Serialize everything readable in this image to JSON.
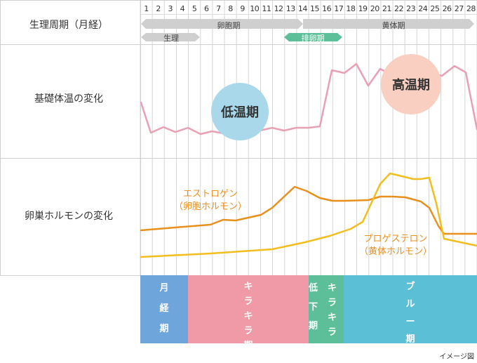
{
  "header": {
    "row_label": "生理周期（月経）",
    "days": [
      "1",
      "2",
      "3",
      "4",
      "5",
      "6",
      "7",
      "8",
      "9",
      "10",
      "11",
      "12",
      "13",
      "14",
      "15",
      "16",
      "17",
      "18",
      "19",
      "20",
      "21",
      "22",
      "23",
      "24",
      "25",
      "26",
      "27",
      "28"
    ],
    "arrows": {
      "menses": "生理",
      "follicular": "卵胞期",
      "ovulation": "排卵期",
      "luteal": "黄体期"
    }
  },
  "bbt": {
    "row_label": "基礎体温の変化",
    "low_label": "低温期",
    "high_label": "高温期"
  },
  "hormone": {
    "row_label": "卵巣ホルモンの変化",
    "estrogen": {
      "name": "エストロゲン",
      "sub": "（卵胞ホルモン）"
    },
    "progesterone": {
      "name": "プロゲステロン",
      "sub": "（黄体ホルモン）"
    }
  },
  "phases": [
    {
      "chars": [
        "月",
        "経",
        "期"
      ]
    },
    {
      "chars": [
        "キ",
        "ラ",
        "キ",
        "ラ",
        "期"
      ]
    },
    {
      "chars": [
        "低",
        "下",
        "期"
      ],
      "chars2": [
        "キ",
        "ラ",
        "キ",
        "ラ"
      ]
    },
    {
      "chars": [
        "ブ",
        "ル",
        "ー",
        "期"
      ]
    }
  ],
  "footnote": "イメージ図",
  "colors": {
    "bbt_line": "#e8a0b4",
    "estrogen": "#e8901e",
    "progesterone": "#f2be1e",
    "arrow_gray": "#cfcfcf",
    "arrow_green": "#5cbf9a",
    "low_bubble": "#a8d8ea",
    "high_bubble": "#f9cfc2",
    "phase_menses": "#6ea6dc",
    "phase_kirakira": "#f09aa8",
    "phase_decline": "#5cbf9a",
    "phase_blue": "#5bbfd6"
  }
}
